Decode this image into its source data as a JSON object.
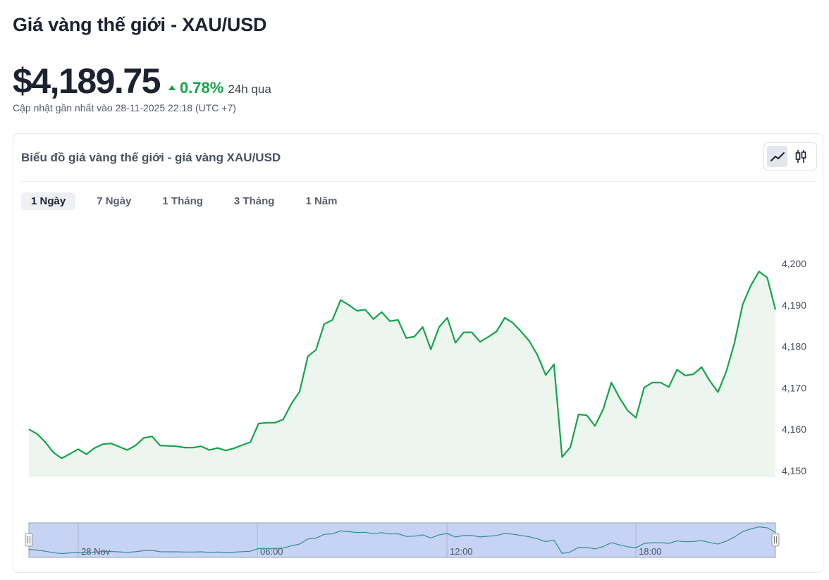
{
  "page": {
    "title": "Giá vàng thế giới - XAU/USD",
    "price": "$4,189.75",
    "change": "0.78%",
    "change_period": "24h qua",
    "updated": "Cập nhật gần nhất vào 28-11-2025 22:18 (UTC +7)"
  },
  "card": {
    "title": "Biểu đồ giá vàng thế giới - giá vàng XAU/USD",
    "chart_type_options": [
      "line-chart-icon",
      "candlestick-chart-icon"
    ],
    "tabs": [
      {
        "label": "1 Ngày",
        "active": true
      },
      {
        "label": "7 Ngày",
        "active": false
      },
      {
        "label": "1 Tháng",
        "active": false
      },
      {
        "label": "3 Tháng",
        "active": false
      },
      {
        "label": "1 Năm",
        "active": false
      }
    ]
  },
  "colors": {
    "line": "#16a34a",
    "area": "#ecf6ef",
    "navigator_fill": "#c7d3f4",
    "navigator_line": "#2f8f8f",
    "positive": "#16a34a"
  },
  "chart_data": {
    "type": "area",
    "y_ticks": [
      "4,200",
      "4,190",
      "4,180",
      "4,170",
      "4,160",
      "4,150"
    ],
    "ylim": [
      4148.5,
      4202.5
    ],
    "navigator_labels": [
      "28 Nov",
      "06:00",
      "12:00",
      "18:00"
    ],
    "values": [
      4160.0,
      4158.9,
      4156.9,
      4154.4,
      4153.0,
      4154.1,
      4155.2,
      4154.0,
      4155.5,
      4156.4,
      4156.6,
      4155.8,
      4155.0,
      4156.1,
      4157.9,
      4158.3,
      4156.1,
      4156.0,
      4155.9,
      4155.6,
      4155.6,
      4155.9,
      4155.0,
      4155.5,
      4154.9,
      4155.4,
      4156.2,
      4156.9,
      4161.4,
      4161.6,
      4161.6,
      4162.4,
      4166.2,
      4169.1,
      4177.6,
      4179.2,
      4185.4,
      4186.4,
      4191.2,
      4190.0,
      4188.6,
      4188.9,
      4186.6,
      4188.3,
      4186.1,
      4186.4,
      4182.0,
      4182.4,
      4184.7,
      4179.3,
      4184.7,
      4186.9,
      4180.9,
      4183.4,
      4183.4,
      4181.1,
      4182.3,
      4183.6,
      4186.9,
      4185.7,
      4183.6,
      4181.3,
      4177.9,
      4173.1,
      4175.7,
      4153.3,
      4155.7,
      4163.6,
      4163.4,
      4160.8,
      4164.8,
      4171.3,
      4167.6,
      4164.5,
      4162.8,
      4170.1,
      4171.3,
      4171.3,
      4170.2,
      4174.4,
      4173.0,
      4173.3,
      4175.0,
      4171.7,
      4169.0,
      4173.9,
      4180.8,
      4190.1,
      4194.7,
      4198.1,
      4196.6,
      4188.9
    ]
  }
}
